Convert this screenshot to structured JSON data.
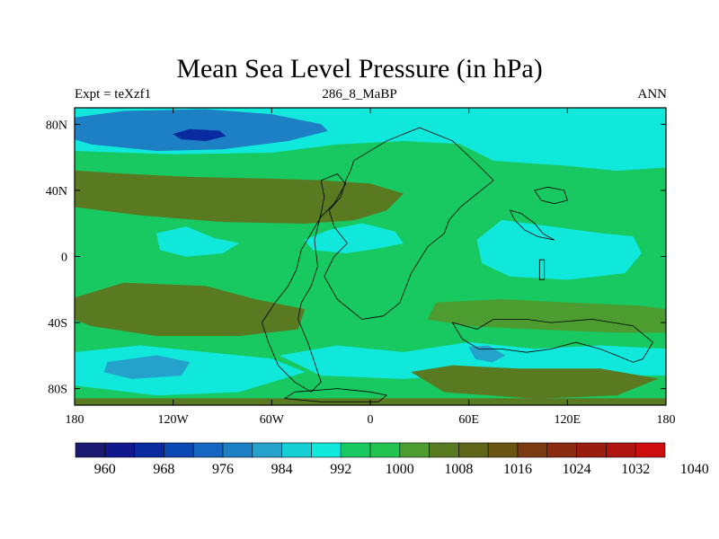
{
  "title": "Mean Sea Level Pressure (in hPa)",
  "left_subtitle": "Expt = teXzf1",
  "center_subtitle": "286_8_MaBP",
  "right_subtitle": "ANN",
  "colors": {
    "levels": [
      "#1a1a70",
      "#10188c",
      "#0a2aa0",
      "#0c48b4",
      "#1466c0",
      "#1e80c4",
      "#24a2cc",
      "#14d0d4",
      "#10e8dc",
      "#18c860",
      "#22c450",
      "#4c9c30",
      "#5a7a22",
      "#5e6418",
      "#6a5414",
      "#7a3a12",
      "#8a2a10",
      "#9a1e10",
      "#b01410",
      "#cc0e0e"
    ],
    "land_outline": "#000000",
    "frame": "#000000"
  },
  "chart_data": {
    "type": "heatmap",
    "title": "Mean Sea Level Pressure (in hPa)",
    "variable": "Mean Sea Level Pressure",
    "units": "hPa",
    "xlim": [
      -180,
      180
    ],
    "ylim": [
      -90,
      90
    ],
    "x_ticks": [
      {
        "value": -180,
        "label": "180"
      },
      {
        "value": -120,
        "label": "120W"
      },
      {
        "value": -60,
        "label": "60W"
      },
      {
        "value": 0,
        "label": "0"
      },
      {
        "value": 60,
        "label": "60E"
      },
      {
        "value": 120,
        "label": "120E"
      },
      {
        "value": 180,
        "label": "180"
      }
    ],
    "y_ticks": [
      {
        "value": 80,
        "label": "80N"
      },
      {
        "value": 40,
        "label": "40N"
      },
      {
        "value": 0,
        "label": "0"
      },
      {
        "value": -40,
        "label": "40S"
      },
      {
        "value": -80,
        "label": "80S"
      }
    ],
    "colorbar": {
      "bins": 20,
      "labels": [
        {
          "bin": 1,
          "value": 960,
          "label": "960"
        },
        {
          "bin": 3,
          "value": 968,
          "label": "968"
        },
        {
          "bin": 5,
          "value": 976,
          "label": "976"
        },
        {
          "bin": 7,
          "value": 984,
          "label": "984"
        },
        {
          "bin": 9,
          "value": 992,
          "label": "992"
        },
        {
          "bin": 11,
          "value": 1000,
          "label": "1000"
        },
        {
          "bin": 13,
          "value": 1008,
          "label": "1008"
        },
        {
          "bin": 15,
          "value": 1016,
          "label": "1016"
        },
        {
          "bin": 17,
          "value": 1024,
          "label": "1024"
        },
        {
          "bin": 19,
          "value": 1032,
          "label": "1032"
        },
        {
          "bin": 21,
          "value": 1040,
          "label": "1040"
        }
      ]
    },
    "regions": [
      {
        "name": "background",
        "level": 9,
        "polygon": [
          [
            -180,
            90
          ],
          [
            180,
            90
          ],
          [
            180,
            -90
          ],
          [
            -180,
            -90
          ]
        ]
      },
      {
        "name": "polar-cyan-north",
        "level": 8,
        "polygon": [
          [
            -180,
            90
          ],
          [
            180,
            90
          ],
          [
            180,
            62
          ],
          [
            120,
            64
          ],
          [
            60,
            68
          ],
          [
            20,
            70
          ],
          [
            -20,
            68
          ],
          [
            -60,
            63
          ],
          [
            -120,
            62
          ],
          [
            -180,
            64
          ]
        ]
      },
      {
        "name": "arctic-low",
        "level": 5,
        "polygon": [
          [
            -180,
            84
          ],
          [
            -150,
            88
          ],
          [
            -100,
            89
          ],
          [
            -60,
            86
          ],
          [
            -30,
            80
          ],
          [
            -26,
            76
          ],
          [
            -50,
            70
          ],
          [
            -90,
            65
          ],
          [
            -130,
            64
          ],
          [
            -170,
            68
          ],
          [
            -180,
            71
          ]
        ]
      },
      {
        "name": "arctic-low-core",
        "level": 2,
        "polygon": [
          [
            -120,
            74
          ],
          [
            -110,
            77
          ],
          [
            -92,
            76
          ],
          [
            -88,
            73
          ],
          [
            -100,
            70
          ],
          [
            -115,
            71
          ]
        ]
      },
      {
        "name": "pacific-high-north",
        "level": 12,
        "polygon": [
          [
            -180,
            52
          ],
          [
            -150,
            50
          ],
          [
            -110,
            48
          ],
          [
            -60,
            47
          ],
          [
            -30,
            46
          ],
          [
            0,
            44
          ],
          [
            20,
            38
          ],
          [
            10,
            28
          ],
          [
            -10,
            22
          ],
          [
            -40,
            20
          ],
          [
            -90,
            21
          ],
          [
            -140,
            25
          ],
          [
            -180,
            30
          ]
        ]
      },
      {
        "name": "central-asia-cyan",
        "level": 8,
        "polygon": [
          [
            0,
            70
          ],
          [
            30,
            78
          ],
          [
            55,
            68
          ],
          [
            75,
            58
          ],
          [
            120,
            55
          ],
          [
            150,
            52
          ],
          [
            180,
            54
          ],
          [
            180,
            64
          ],
          [
            120,
            66
          ],
          [
            60,
            70
          ],
          [
            20,
            71
          ]
        ]
      },
      {
        "name": "tropical-cyan-west",
        "level": 8,
        "polygon": [
          [
            -130,
            14
          ],
          [
            -112,
            18
          ],
          [
            -95,
            11
          ],
          [
            -80,
            8
          ],
          [
            -90,
            2
          ],
          [
            -112,
            0
          ],
          [
            -128,
            4
          ]
        ]
      },
      {
        "name": "tropical-cyan-atlantic",
        "level": 8,
        "polygon": [
          [
            -40,
            10
          ],
          [
            -25,
            16
          ],
          [
            -5,
            20
          ],
          [
            15,
            15
          ],
          [
            20,
            8
          ],
          [
            5,
            5
          ],
          [
            -15,
            2
          ],
          [
            -35,
            4
          ]
        ]
      },
      {
        "name": "indian-ocean-cyan",
        "level": 8,
        "polygon": [
          [
            65,
            10
          ],
          [
            80,
            22
          ],
          [
            110,
            18
          ],
          [
            140,
            14
          ],
          [
            160,
            12
          ],
          [
            165,
            2
          ],
          [
            155,
            -10
          ],
          [
            120,
            -14
          ],
          [
            85,
            -12
          ],
          [
            68,
            -4
          ]
        ]
      },
      {
        "name": "pacific-high-south",
        "level": 12,
        "polygon": [
          [
            -180,
            -25
          ],
          [
            -150,
            -16
          ],
          [
            -100,
            -18
          ],
          [
            -70,
            -26
          ],
          [
            -40,
            -32
          ],
          [
            -44,
            -44
          ],
          [
            -80,
            -48
          ],
          [
            -130,
            -48
          ],
          [
            -170,
            -42
          ],
          [
            -180,
            -38
          ]
        ]
      },
      {
        "name": "indian-high-south",
        "level": 11,
        "polygon": [
          [
            40,
            -28
          ],
          [
            80,
            -26
          ],
          [
            120,
            -28
          ],
          [
            165,
            -30
          ],
          [
            180,
            -32
          ],
          [
            180,
            -46
          ],
          [
            150,
            -46
          ],
          [
            100,
            -44
          ],
          [
            60,
            -42
          ],
          [
            35,
            -38
          ]
        ]
      },
      {
        "name": "southern-cyan-west",
        "level": 8,
        "polygon": [
          [
            -180,
            -58
          ],
          [
            -140,
            -54
          ],
          [
            -100,
            -58
          ],
          [
            -60,
            -62
          ],
          [
            -40,
            -70
          ],
          [
            -80,
            -82
          ],
          [
            -130,
            -84
          ],
          [
            -180,
            -78
          ]
        ]
      },
      {
        "name": "southern-low-west",
        "level": 6,
        "polygon": [
          [
            -160,
            -64
          ],
          [
            -130,
            -60
          ],
          [
            -110,
            -64
          ],
          [
            -115,
            -72
          ],
          [
            -145,
            -74
          ],
          [
            -162,
            -70
          ]
        ]
      },
      {
        "name": "southern-cyan-east",
        "level": 8,
        "polygon": [
          [
            -55,
            -60
          ],
          [
            -20,
            -54
          ],
          [
            20,
            -58
          ],
          [
            60,
            -52
          ],
          [
            100,
            -56
          ],
          [
            140,
            -54
          ],
          [
            180,
            -56
          ],
          [
            180,
            -72
          ],
          [
            140,
            -72
          ],
          [
            80,
            -70
          ],
          [
            20,
            -74
          ],
          [
            -30,
            -72
          ]
        ]
      },
      {
        "name": "southern-blue-small",
        "level": 6,
        "polygon": [
          [
            60,
            -55
          ],
          [
            72,
            -54
          ],
          [
            82,
            -60
          ],
          [
            74,
            -64
          ],
          [
            64,
            -62
          ]
        ]
      },
      {
        "name": "southern-high-band",
        "level": 12,
        "polygon": [
          [
            25,
            -70
          ],
          [
            50,
            -66
          ],
          [
            90,
            -68
          ],
          [
            140,
            -68
          ],
          [
            175,
            -74
          ],
          [
            150,
            -84
          ],
          [
            100,
            -86
          ],
          [
            45,
            -82
          ]
        ]
      },
      {
        "name": "antarctic-fringe",
        "level": 12,
        "polygon": [
          [
            -180,
            -86
          ],
          [
            180,
            -86
          ],
          [
            180,
            -90
          ],
          [
            -180,
            -90
          ]
        ]
      }
    ],
    "land_outlines": [
      {
        "name": "eurasia-africa-outline",
        "polygon": [
          [
            -10,
            58
          ],
          [
            10,
            70
          ],
          [
            30,
            78
          ],
          [
            50,
            70
          ],
          [
            65,
            56
          ],
          [
            75,
            46
          ],
          [
            65,
            38
          ],
          [
            55,
            30
          ],
          [
            48,
            22
          ],
          [
            45,
            14
          ],
          [
            35,
            6
          ],
          [
            25,
            -10
          ],
          [
            18,
            -28
          ],
          [
            8,
            -36
          ],
          [
            -5,
            -38
          ],
          [
            -20,
            -26
          ],
          [
            -28,
            -12
          ],
          [
            -22,
            0
          ],
          [
            -14,
            8
          ],
          [
            -22,
            18
          ],
          [
            -25,
            28
          ],
          [
            -18,
            36
          ],
          [
            -15,
            46
          ],
          [
            -12,
            52
          ]
        ]
      },
      {
        "name": "americas-outline",
        "polygon": [
          [
            -30,
            46
          ],
          [
            -20,
            50
          ],
          [
            -15,
            44
          ],
          [
            -22,
            32
          ],
          [
            -30,
            24
          ],
          [
            -36,
            14
          ],
          [
            -42,
            4
          ],
          [
            -45,
            -8
          ],
          [
            -50,
            -18
          ],
          [
            -58,
            -28
          ],
          [
            -66,
            -40
          ],
          [
            -62,
            -52
          ],
          [
            -56,
            -66
          ],
          [
            -46,
            -76
          ],
          [
            -36,
            -82
          ],
          [
            -30,
            -76
          ],
          [
            -34,
            -64
          ],
          [
            -38,
            -52
          ],
          [
            -44,
            -38
          ],
          [
            -42,
            -28
          ],
          [
            -36,
            -18
          ],
          [
            -32,
            -6
          ],
          [
            -34,
            10
          ],
          [
            -30,
            26
          ],
          [
            -28,
            36
          ]
        ]
      },
      {
        "name": "antarctica-outline",
        "polygon": [
          [
            -46,
            -82
          ],
          [
            -20,
            -80
          ],
          [
            0,
            -82
          ],
          [
            10,
            -84
          ],
          [
            5,
            -88
          ],
          [
            -30,
            -88
          ],
          [
            -52,
            -86
          ]
        ]
      },
      {
        "name": "asia-east-outline",
        "polygon": [
          [
            85,
            28
          ],
          [
            92,
            26
          ],
          [
            100,
            20
          ],
          [
            105,
            14
          ],
          [
            112,
            10
          ],
          [
            102,
            12
          ],
          [
            94,
            16
          ],
          [
            88,
            22
          ]
        ]
      },
      {
        "name": "east-asia-block",
        "polygon": [
          [
            100,
            40
          ],
          [
            108,
            42
          ],
          [
            118,
            40
          ],
          [
            120,
            34
          ],
          [
            112,
            32
          ],
          [
            104,
            34
          ]
        ]
      },
      {
        "name": "australia-like-outline",
        "polygon": [
          [
            50,
            -40
          ],
          [
            65,
            -44
          ],
          [
            75,
            -38
          ],
          [
            95,
            -38
          ],
          [
            110,
            -40
          ],
          [
            135,
            -38
          ],
          [
            160,
            -42
          ],
          [
            172,
            -52
          ],
          [
            166,
            -62
          ],
          [
            160,
            -64
          ],
          [
            150,
            -60
          ],
          [
            140,
            -56
          ],
          [
            125,
            -52
          ],
          [
            110,
            -56
          ],
          [
            95,
            -58
          ],
          [
            80,
            -56
          ],
          [
            66,
            -56
          ],
          [
            56,
            -50
          ]
        ]
      },
      {
        "name": "island-outline",
        "polygon": [
          [
            103,
            -2
          ],
          [
            106,
            -2
          ],
          [
            106,
            -14
          ],
          [
            103,
            -14
          ]
        ]
      }
    ]
  }
}
